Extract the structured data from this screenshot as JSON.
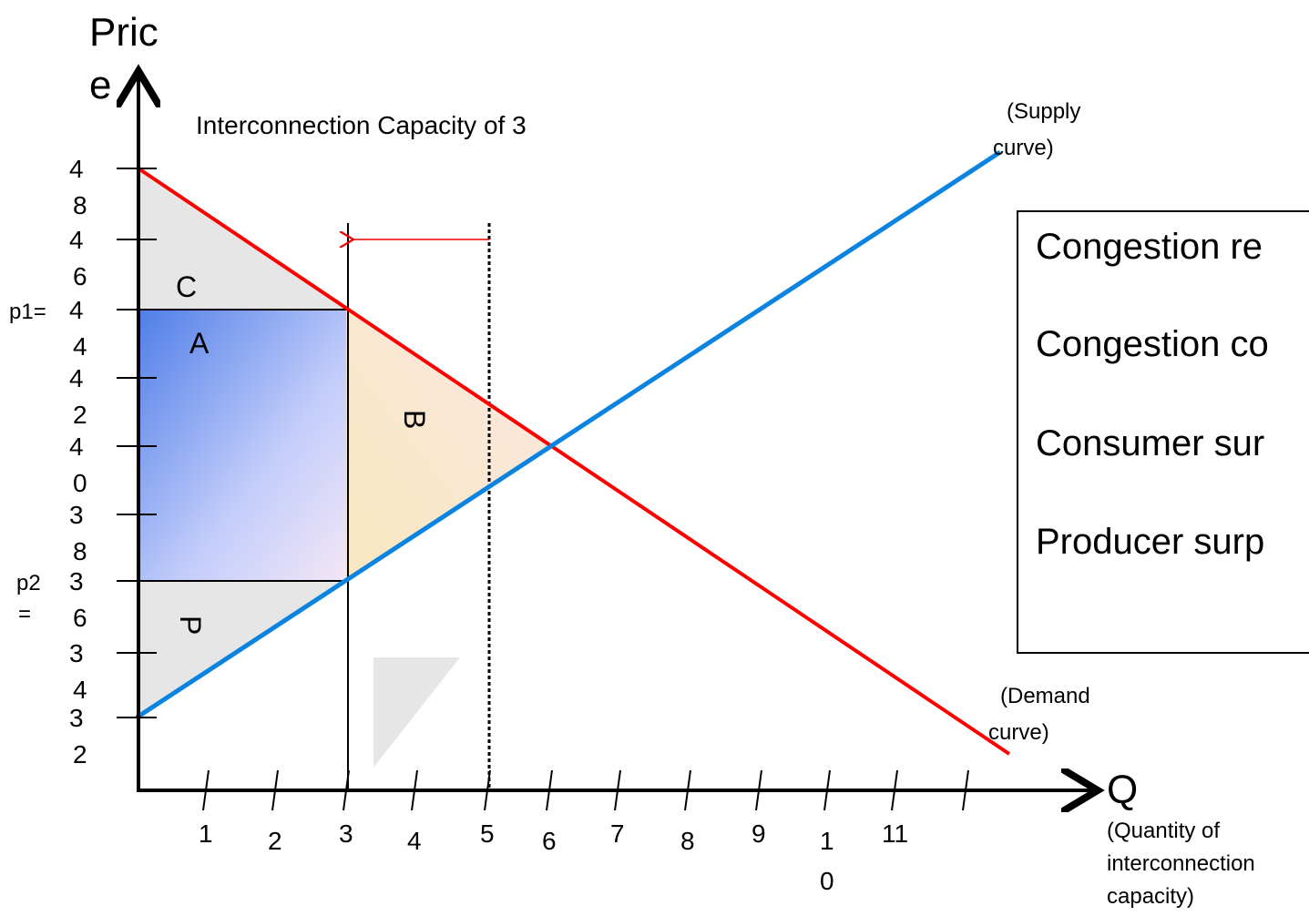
{
  "y_axis_label": [
    "Pric",
    "e"
  ],
  "title": "Interconnection Capacity of 3",
  "supply_label": [
    "(Supply",
    "curve)"
  ],
  "demand_label": [
    "(Demand",
    "curve)"
  ],
  "x_axis_label": "Q",
  "x_axis_note": [
    "(Quantity of",
    "interconnection",
    "capacity)"
  ],
  "y_tick_labels": [
    [
      "4",
      "8"
    ],
    [
      "4",
      "6"
    ],
    [
      "4",
      "4"
    ],
    [
      "4",
      "2"
    ],
    [
      "4",
      "0"
    ],
    [
      "3",
      "8"
    ],
    [
      "3",
      "6"
    ],
    [
      "3",
      "4"
    ],
    [
      "3",
      "2"
    ]
  ],
  "p1_label": "p1=",
  "p2_label": [
    "p2",
    "="
  ],
  "x_tick_labels": [
    [
      "1"
    ],
    [
      "2"
    ],
    [
      "3"
    ],
    [
      "4"
    ],
    [
      "5"
    ],
    [
      "6"
    ],
    [
      "7"
    ],
    [
      "8"
    ],
    [
      "9"
    ],
    [
      "1",
      "0"
    ],
    [
      "11"
    ]
  ],
  "regions": [
    "C",
    "A",
    "B",
    "P"
  ],
  "legend": [
    "Congestion re",
    "Congestion co",
    "Consumer sur",
    "Producer surp"
  ]
}
